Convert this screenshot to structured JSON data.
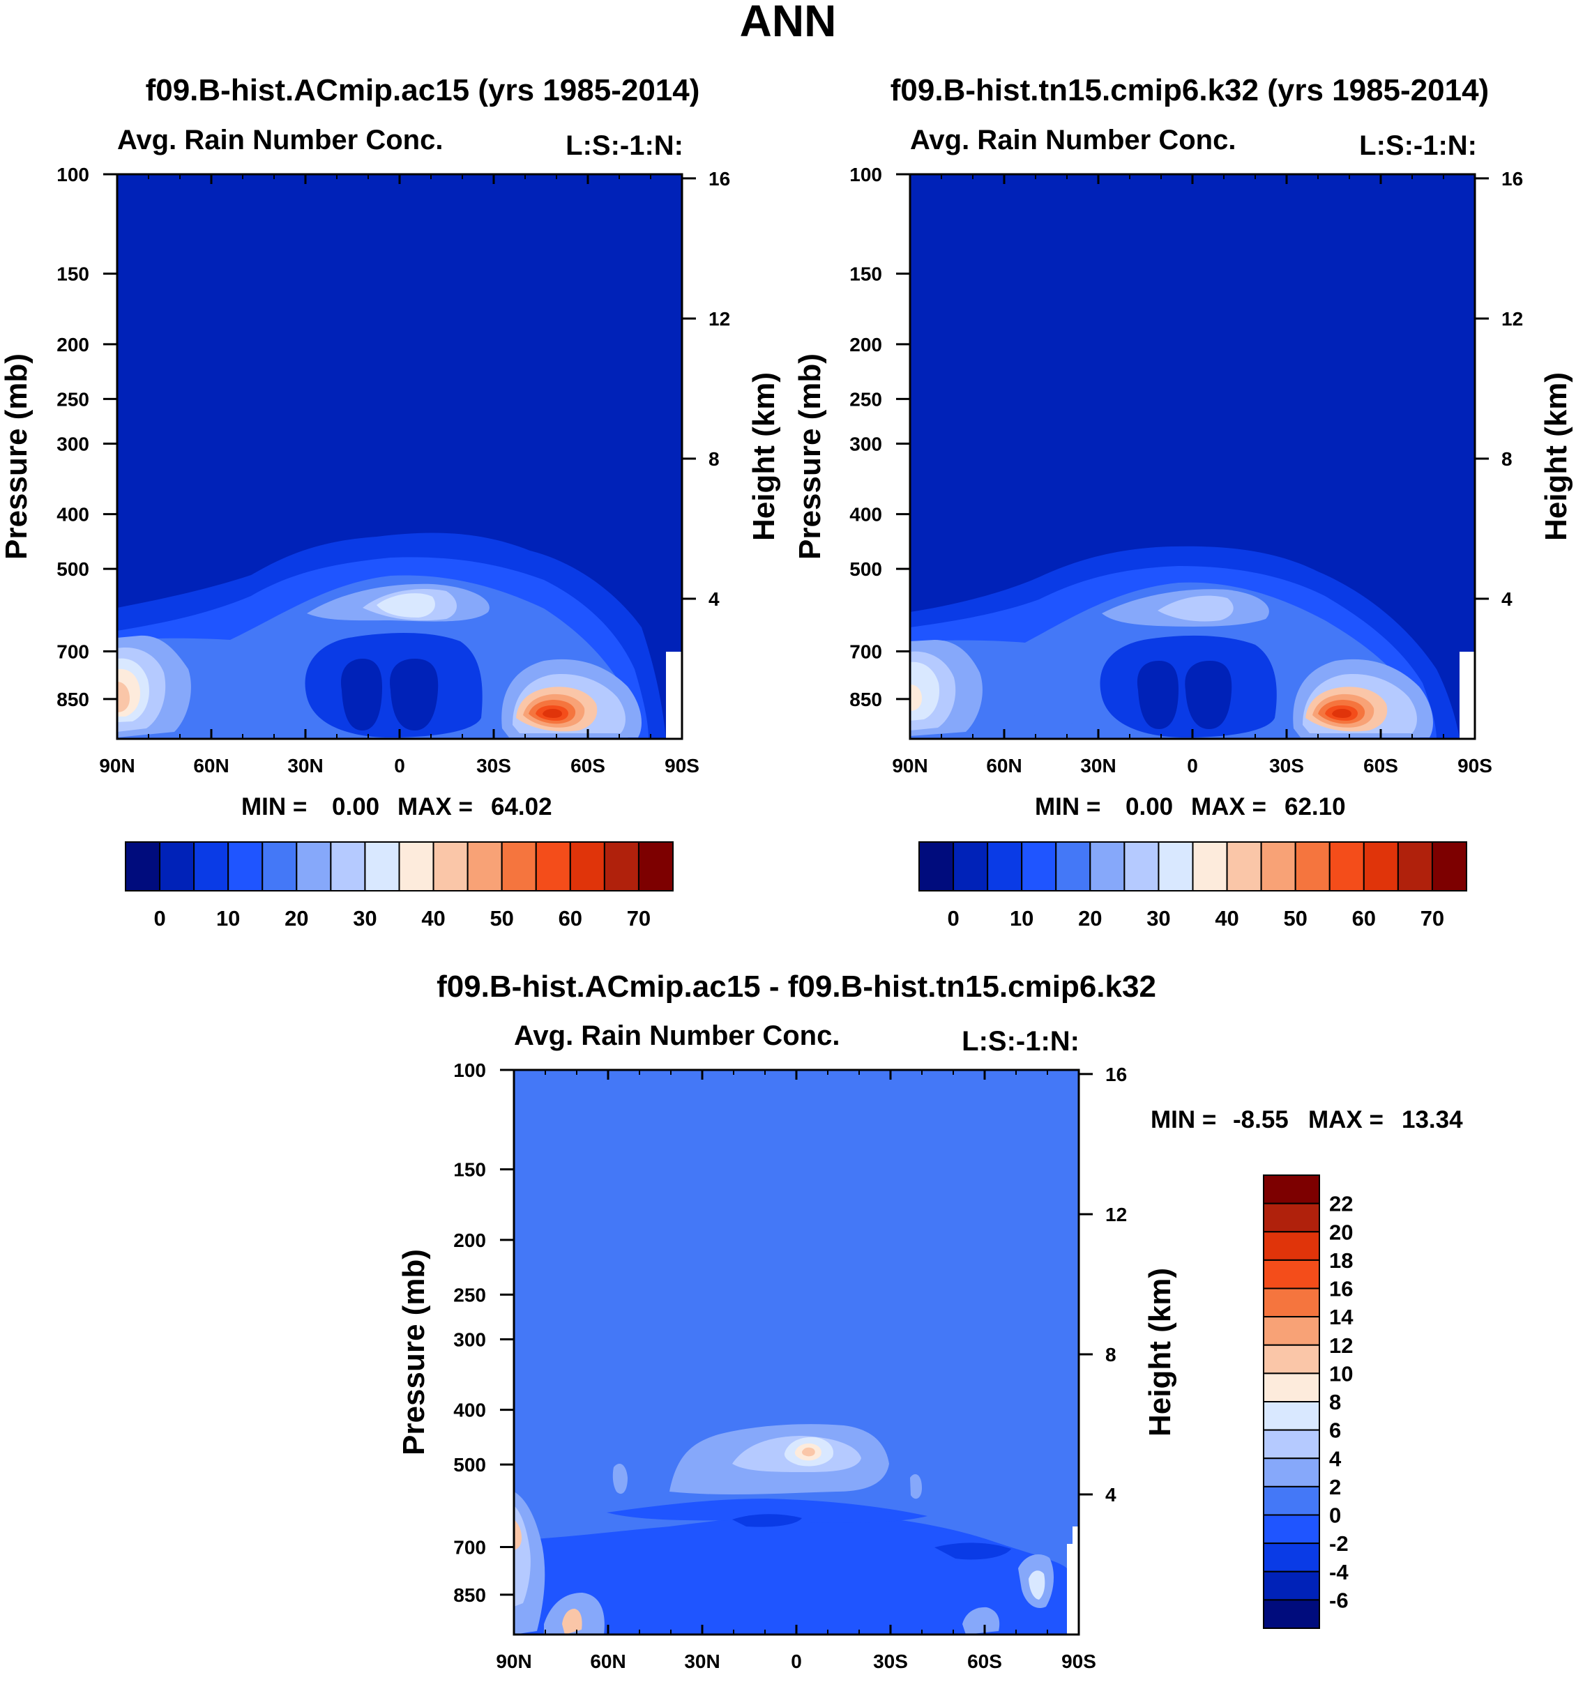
{
  "figure": {
    "title": "ANN"
  },
  "colors": {
    "sequential": [
      "#000c7d",
      "#0022b8",
      "#0a3be6",
      "#1f55ff",
      "#4478f7",
      "#86a8fa",
      "#b5caff",
      "#d9e8ff",
      "#fdebdc",
      "#fac6a8",
      "#f8a276",
      "#f5753e",
      "#f44d1a",
      "#e0340a",
      "#b0210c",
      "#7d0000"
    ],
    "diverging": [
      "#000c7d",
      "#0022b8",
      "#0a3be6",
      "#1f55ff",
      "#4478f7",
      "#86a8fa",
      "#b5caff",
      "#d9e8ff",
      "#fdebdc",
      "#fac6a8",
      "#f8a276",
      "#f5753e",
      "#f44d1a",
      "#e0340a",
      "#b0210c",
      "#7d0000"
    ]
  },
  "chart_data": [
    {
      "type": "heatmap",
      "id": "panel-left",
      "title": "f09.B-hist.ACmip.ac15 (yrs 1985-2014)",
      "subtitle_left": "Avg. Rain Number Conc.",
      "subtitle_right": "L:S:-1:N:",
      "ylabel": "Pressure (mb)",
      "ylabel_right": "Height (km)",
      "x_ticks": [
        "90N",
        "60N",
        "30N",
        "0",
        "30S",
        "60S",
        "90S"
      ],
      "y_ticks": [
        "100",
        "150",
        "200",
        "250",
        "300",
        "400",
        "500",
        "700",
        "850"
      ],
      "y_values": [
        100,
        150,
        200,
        250,
        300,
        400,
        500,
        700,
        850
      ],
      "height_ticks": [
        "16",
        "12",
        "8",
        "4"
      ],
      "height_values": [
        16,
        12,
        8,
        4
      ],
      "ylim": [
        100,
        1000
      ],
      "min_label": "MIN =",
      "min_value": "0.00",
      "max_label": "MAX =",
      "max_value": "64.02",
      "colorbar_labels": [
        "0",
        "10",
        "20",
        "30",
        "40",
        "50",
        "60",
        "70"
      ],
      "colorbar_values": [
        0,
        10,
        20,
        30,
        40,
        50,
        60,
        70
      ]
    },
    {
      "type": "heatmap",
      "id": "panel-right",
      "title": "f09.B-hist.tn15.cmip6.k32 (yrs 1985-2014)",
      "subtitle_left": "Avg. Rain Number Conc.",
      "subtitle_right": "L:S:-1:N:",
      "ylabel": "Pressure (mb)",
      "ylabel_right": "Height (km)",
      "x_ticks": [
        "90N",
        "60N",
        "30N",
        "0",
        "30S",
        "60S",
        "90S"
      ],
      "y_ticks": [
        "100",
        "150",
        "200",
        "250",
        "300",
        "400",
        "500",
        "700",
        "850"
      ],
      "y_values": [
        100,
        150,
        200,
        250,
        300,
        400,
        500,
        700,
        850
      ],
      "height_ticks": [
        "16",
        "12",
        "8",
        "4"
      ],
      "height_values": [
        16,
        12,
        8,
        4
      ],
      "ylim": [
        100,
        1000
      ],
      "min_label": "MIN =",
      "min_value": "0.00",
      "max_label": "MAX =",
      "max_value": "62.10",
      "colorbar_labels": [
        "0",
        "10",
        "20",
        "30",
        "40",
        "50",
        "60",
        "70"
      ],
      "colorbar_values": [
        0,
        10,
        20,
        30,
        40,
        50,
        60,
        70
      ]
    },
    {
      "type": "heatmap",
      "id": "panel-diff",
      "title": "f09.B-hist.ACmip.ac15 - f09.B-hist.tn15.cmip6.k32",
      "subtitle_left": "Avg. Rain Number Conc.",
      "subtitle_right": "L:S:-1:N:",
      "ylabel": "Pressure (mb)",
      "ylabel_right": "Height (km)",
      "x_ticks": [
        "90N",
        "60N",
        "30N",
        "0",
        "30S",
        "60S",
        "90S"
      ],
      "y_ticks": [
        "100",
        "150",
        "200",
        "250",
        "300",
        "400",
        "500",
        "700",
        "850"
      ],
      "y_values": [
        100,
        150,
        200,
        250,
        300,
        400,
        500,
        700,
        850
      ],
      "height_ticks": [
        "16",
        "12",
        "8",
        "4"
      ],
      "height_values": [
        16,
        12,
        8,
        4
      ],
      "ylim": [
        100,
        1000
      ],
      "min_label": "MIN =",
      "min_value": "-8.55",
      "max_label": "MAX =",
      "max_value": "13.34",
      "colorbar_labels": [
        "22",
        "20",
        "18",
        "16",
        "14",
        "12",
        "10",
        "8",
        "6",
        "4",
        "2",
        "0",
        "-2",
        "-4",
        "-6"
      ],
      "colorbar_values": [
        22,
        20,
        18,
        16,
        14,
        12,
        10,
        8,
        6,
        4,
        2,
        0,
        -2,
        -4,
        -6
      ]
    }
  ]
}
